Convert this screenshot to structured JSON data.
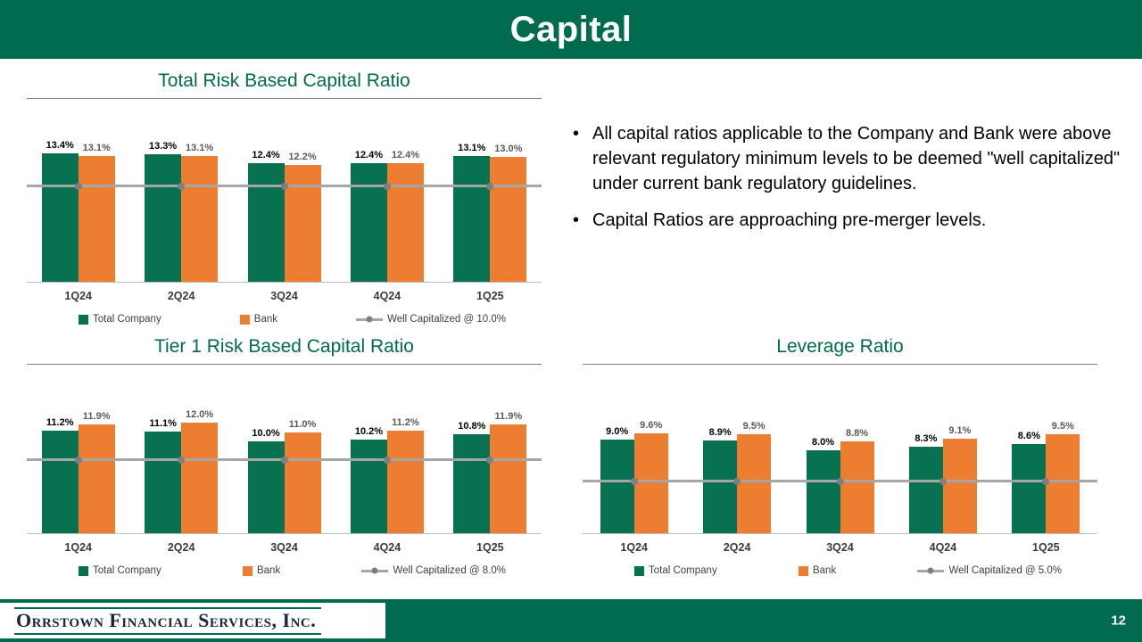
{
  "header": {
    "title": "Capital"
  },
  "notes": {
    "bullets": [
      "All capital ratios applicable to the Company and Bank were above relevant regulatory minimum levels to be deemed \"well capitalized\" under current bank regulatory guidelines.",
      "Capital Ratios are approaching pre-merger levels."
    ]
  },
  "footer": {
    "logo": "Orrstown Financial Services, Inc.",
    "page_number": "12"
  },
  "colors": {
    "brand_green": "#006B4F",
    "bar_green": "#077151",
    "bank_orange": "#ED7D31",
    "line_gray": "#A6A6A6",
    "marker_gray": "#7F7F7F"
  },
  "chart_data": [
    {
      "type": "bar",
      "title": "Total Risk Based Capital Ratio",
      "categories": [
        "1Q24",
        "2Q24",
        "3Q24",
        "4Q24",
        "1Q25"
      ],
      "series": [
        {
          "name": "Total Company",
          "color": "#077151",
          "values": [
            13.4,
            13.3,
            12.4,
            12.4,
            13.1
          ]
        },
        {
          "name": "Bank",
          "color": "#ED7D31",
          "values": [
            13.1,
            13.1,
            12.2,
            12.4,
            13.0
          ]
        }
      ],
      "reference_line": {
        "label": "Well Capitalized @ 10.0%",
        "value": 10.0
      },
      "ylim": [
        0,
        17.5
      ],
      "value_suffix": "%",
      "legend_position": "bottom",
      "grid": false
    },
    {
      "type": "bar",
      "title": "Tier 1 Risk Based Capital Ratio",
      "categories": [
        "1Q24",
        "2Q24",
        "3Q24",
        "4Q24",
        "1Q25"
      ],
      "series": [
        {
          "name": "Total Company",
          "color": "#077151",
          "values": [
            11.2,
            11.1,
            10.0,
            10.2,
            10.8
          ]
        },
        {
          "name": "Bank",
          "color": "#ED7D31",
          "values": [
            11.9,
            12.0,
            11.0,
            11.2,
            11.9
          ]
        }
      ],
      "reference_line": {
        "label": "Well Capitalized @ 8.0%",
        "value": 8.0
      },
      "ylim": [
        0,
        17
      ],
      "value_suffix": "%",
      "legend_position": "bottom",
      "grid": false
    },
    {
      "type": "bar",
      "title": "Leverage Ratio",
      "categories": [
        "1Q24",
        "2Q24",
        "3Q24",
        "4Q24",
        "1Q25"
      ],
      "series": [
        {
          "name": "Total Company",
          "color": "#077151",
          "values": [
            9.0,
            8.9,
            8.0,
            8.3,
            8.6
          ]
        },
        {
          "name": "Bank",
          "color": "#ED7D31",
          "values": [
            9.6,
            9.5,
            8.8,
            9.1,
            9.5
          ]
        }
      ],
      "reference_line": {
        "label": "Well Capitalized @ 5.0%",
        "value": 5.0
      },
      "ylim": [
        0,
        15
      ],
      "value_suffix": "%",
      "legend_position": "bottom",
      "grid": false
    }
  ]
}
